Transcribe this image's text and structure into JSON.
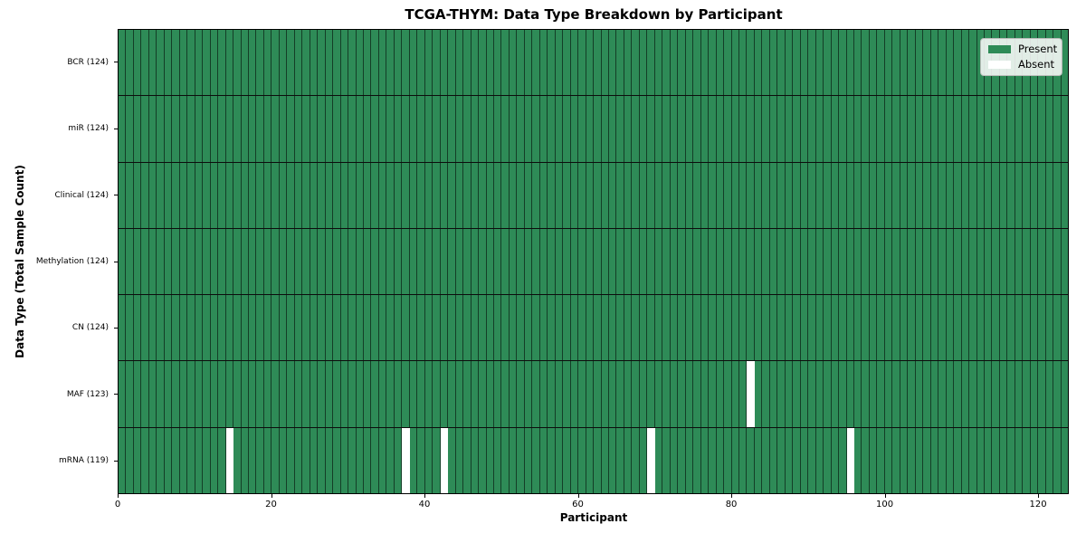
{
  "figure": {
    "title": "TCGA-THYM: Data Type Breakdown by Participant",
    "xlabel": "Participant",
    "ylabel": "Data Type (Total Sample Count)"
  },
  "legend": {
    "items": [
      {
        "name": "present-swatch",
        "label": "Present",
        "color": "#2e8b57"
      },
      {
        "name": "absent-swatch",
        "label": "Absent",
        "color": "#ffffff"
      }
    ]
  },
  "chart_data": {
    "type": "heatmap",
    "title": "TCGA-THYM: Data Type Breakdown by Participant",
    "xlabel": "Participant",
    "ylabel": "Data Type (Total Sample Count)",
    "n_participants": 124,
    "xlim": [
      0,
      124
    ],
    "x_ticks": [
      0,
      20,
      40,
      60,
      80,
      100,
      120
    ],
    "colors": {
      "present": "#2e8b57",
      "absent": "#ffffff",
      "cell_border": "rgba(0,0,0,0.55)"
    },
    "legend_entries": [
      "Present",
      "Absent"
    ],
    "legend_position": "upper right",
    "grid": "cell-borders",
    "rows": [
      {
        "label": "BCR (124)",
        "data_type": "BCR",
        "present_count": 124,
        "absent_participants": []
      },
      {
        "label": "miR (124)",
        "data_type": "miR",
        "present_count": 124,
        "absent_participants": []
      },
      {
        "label": "Clinical (124)",
        "data_type": "Clinical",
        "present_count": 124,
        "absent_participants": []
      },
      {
        "label": "Methylation (124)",
        "data_type": "Methylation",
        "present_count": 124,
        "absent_participants": []
      },
      {
        "label": "CN (124)",
        "data_type": "CN",
        "present_count": 124,
        "absent_participants": []
      },
      {
        "label": "MAF (123)",
        "data_type": "MAF",
        "present_count": 123,
        "absent_participants": [
          82
        ]
      },
      {
        "label": "mRNA (119)",
        "data_type": "mRNA",
        "present_count": 119,
        "absent_participants": [
          14,
          37,
          42,
          69,
          95
        ]
      }
    ]
  }
}
